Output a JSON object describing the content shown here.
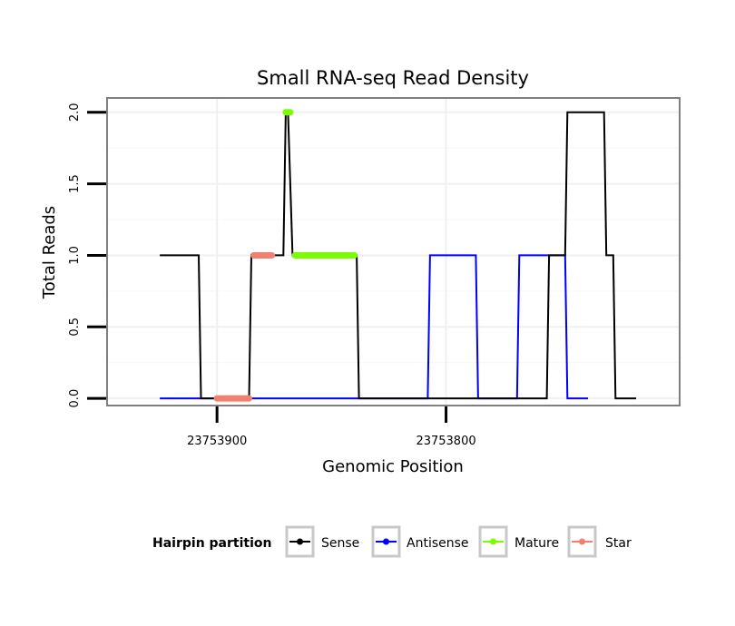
{
  "chart_data": {
    "type": "line",
    "title": "Small RNA-seq Read Density",
    "xlabel": "Genomic Position",
    "ylabel": "Total Reads",
    "x_reversed": true,
    "xlim": [
      23753948,
      23753698
    ],
    "ylim": [
      -0.05,
      2.1
    ],
    "xticks": [
      23753900,
      23753800
    ],
    "xtick_labels": [
      "23753900",
      "23753800"
    ],
    "yticks": [
      0.0,
      0.5,
      1.0,
      1.5,
      2.0
    ],
    "ytick_labels": [
      "0.0",
      "0.5",
      "1.0",
      "1.5",
      "2.0"
    ],
    "grid": true,
    "legend": {
      "title": "Hairpin partition",
      "position": "bottom",
      "entries": [
        {
          "name": "Sense",
          "color": "#000000"
        },
        {
          "name": "Antisense",
          "color": "#0000ff"
        },
        {
          "name": "Mature",
          "color": "#7cfc00"
        },
        {
          "name": "Star",
          "color": "#f08070"
        }
      ]
    },
    "series": [
      {
        "name": "Sense",
        "color": "#000000",
        "x": [
          23753925,
          23753908,
          23753907,
          23753886,
          23753885,
          23753871,
          23753870,
          23753869,
          23753867,
          23753866,
          23753865,
          23753864,
          23753863,
          23753862,
          23753861,
          23753839,
          23753838,
          23753756,
          23753755,
          23753749,
          23753748,
          23753747,
          23753731,
          23753730,
          23753729,
          23753728,
          23753727,
          23753726,
          23753717
        ],
        "y": [
          1,
          1,
          0,
          0,
          1,
          1,
          2,
          2,
          1,
          1,
          1,
          1,
          1,
          1,
          1,
          1,
          0,
          0,
          1,
          1,
          1,
          2,
          2,
          1,
          1,
          1,
          1,
          0,
          0
        ]
      },
      {
        "name": "Antisense",
        "color": "#0000ff",
        "x": [
          23753925,
          23753808,
          23753807,
          23753787,
          23753786,
          23753769,
          23753768,
          23753748,
          23753747,
          23753738
        ],
        "y": [
          0,
          0,
          1,
          1,
          0,
          0,
          1,
          1,
          0,
          0
        ]
      },
      {
        "name": "Mature",
        "color": "#7cfc00",
        "x": [
          23753870,
          23753868,
          23753866,
          23753840
        ],
        "y": [
          2,
          2,
          1,
          1
        ]
      },
      {
        "name": "Star",
        "color": "#f08070",
        "x": [
          23753884,
          23753876,
          23753900,
          23753886
        ],
        "y": [
          1,
          1,
          0,
          0
        ]
      }
    ]
  }
}
